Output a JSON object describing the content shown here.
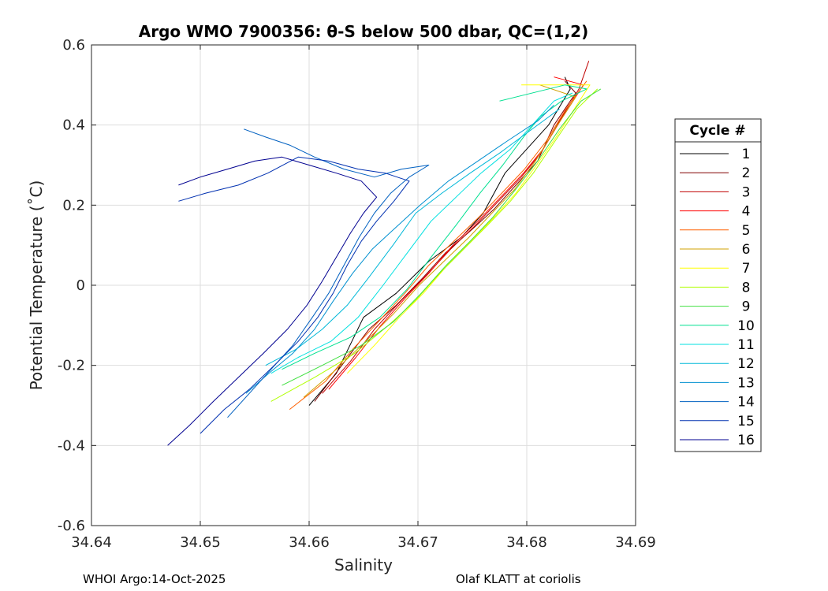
{
  "chart_data": {
    "type": "line",
    "title": "Argo WMO 7900356: θ-S below 500 dbar,  QC=(1,2)",
    "xlabel": "Salinity",
    "ylabel": "Potential Temperature (˚C)",
    "xlim": [
      34.64,
      34.69
    ],
    "ylim": [
      -0.6,
      0.6
    ],
    "x_ticks": [
      "34.64",
      "34.65",
      "34.66",
      "34.67",
      "34.68",
      "34.69"
    ],
    "y_ticks": [
      "0.6",
      "0.4",
      "0.2",
      "0",
      "-0.2",
      "-0.4",
      "-0.6"
    ],
    "grid": true,
    "legend": {
      "title": "Cycle #",
      "placement": "right"
    },
    "series": [
      {
        "name": "1",
        "color": "#000000",
        "points": [
          [
            34.66,
            -0.3
          ],
          [
            34.6625,
            -0.22
          ],
          [
            34.665,
            -0.08
          ],
          [
            34.668,
            -0.02
          ],
          [
            34.671,
            0.06
          ],
          [
            34.674,
            0.12
          ],
          [
            34.676,
            0.18
          ],
          [
            34.678,
            0.28
          ],
          [
            34.68,
            0.34
          ],
          [
            34.682,
            0.4
          ],
          [
            34.684,
            0.49
          ],
          [
            34.6835,
            0.52
          ]
        ]
      },
      {
        "name": "2",
        "color": "#800000",
        "points": [
          [
            34.6605,
            -0.29
          ],
          [
            34.663,
            -0.2
          ],
          [
            34.6655,
            -0.11
          ],
          [
            34.668,
            -0.05
          ],
          [
            34.6705,
            0.02
          ],
          [
            34.6725,
            0.08
          ],
          [
            34.675,
            0.14
          ],
          [
            34.677,
            0.19
          ],
          [
            34.679,
            0.25
          ],
          [
            34.681,
            0.31
          ],
          [
            34.6825,
            0.4
          ],
          [
            34.6845,
            0.48
          ],
          [
            34.6835,
            0.51
          ]
        ]
      },
      {
        "name": "3",
        "color": "#c00000",
        "points": [
          [
            34.6612,
            -0.27
          ],
          [
            34.6638,
            -0.19
          ],
          [
            34.666,
            -0.11
          ],
          [
            34.6684,
            -0.04
          ],
          [
            34.6706,
            0.02
          ],
          [
            34.673,
            0.09
          ],
          [
            34.6753,
            0.15
          ],
          [
            34.6774,
            0.21
          ],
          [
            34.6795,
            0.27
          ],
          [
            34.6813,
            0.33
          ],
          [
            34.683,
            0.41
          ],
          [
            34.6848,
            0.49
          ],
          [
            34.6857,
            0.56
          ]
        ]
      },
      {
        "name": "4",
        "color": "#ff0000",
        "points": [
          [
            34.6618,
            -0.26
          ],
          [
            34.6643,
            -0.18
          ],
          [
            34.6666,
            -0.1
          ],
          [
            34.6689,
            -0.03
          ],
          [
            34.671,
            0.03
          ],
          [
            34.6732,
            0.1
          ],
          [
            34.6755,
            0.16
          ],
          [
            34.6776,
            0.22
          ],
          [
            34.6797,
            0.28
          ],
          [
            34.6815,
            0.34
          ],
          [
            34.6833,
            0.42
          ],
          [
            34.6852,
            0.5
          ],
          [
            34.6825,
            0.52
          ]
        ]
      },
      {
        "name": "5",
        "color": "#ff6000",
        "points": [
          [
            34.6582,
            -0.31
          ],
          [
            34.6615,
            -0.24
          ],
          [
            34.664,
            -0.16
          ],
          [
            34.6664,
            -0.09
          ],
          [
            34.6688,
            -0.02
          ],
          [
            34.671,
            0.05
          ],
          [
            34.6733,
            0.11
          ],
          [
            34.6756,
            0.17
          ],
          [
            34.6777,
            0.23
          ],
          [
            34.6798,
            0.29
          ],
          [
            34.6818,
            0.36
          ],
          [
            34.6836,
            0.44
          ],
          [
            34.6855,
            0.51
          ]
        ]
      },
      {
        "name": "6",
        "color": "#d0a000",
        "points": [
          [
            34.6595,
            -0.28
          ],
          [
            34.6625,
            -0.21
          ],
          [
            34.6652,
            -0.14
          ],
          [
            34.6678,
            -0.07
          ],
          [
            34.6701,
            0.0
          ],
          [
            34.6724,
            0.06
          ],
          [
            34.6747,
            0.12
          ],
          [
            34.6768,
            0.18
          ],
          [
            34.6789,
            0.24
          ],
          [
            34.6808,
            0.31
          ],
          [
            34.6826,
            0.39
          ],
          [
            34.6845,
            0.47
          ],
          [
            34.6812,
            0.5
          ]
        ]
      },
      {
        "name": "7",
        "color": "#ffff00",
        "points": [
          [
            34.6635,
            -0.22
          ],
          [
            34.666,
            -0.15
          ],
          [
            34.6683,
            -0.08
          ],
          [
            34.6705,
            -0.02
          ],
          [
            34.6727,
            0.05
          ],
          [
            34.6749,
            0.11
          ],
          [
            34.677,
            0.17
          ],
          [
            34.679,
            0.23
          ],
          [
            34.6809,
            0.3
          ],
          [
            34.6827,
            0.37
          ],
          [
            34.6846,
            0.45
          ],
          [
            34.6858,
            0.5
          ],
          [
            34.6795,
            0.5
          ]
        ]
      },
      {
        "name": "8",
        "color": "#b0ff00",
        "points": [
          [
            34.6565,
            -0.29
          ],
          [
            34.6605,
            -0.23
          ],
          [
            34.6642,
            -0.17
          ],
          [
            34.6673,
            -0.1
          ],
          [
            34.6697,
            -0.04
          ],
          [
            34.672,
            0.03
          ],
          [
            34.6742,
            0.09
          ],
          [
            34.6764,
            0.15
          ],
          [
            34.6785,
            0.21
          ],
          [
            34.6806,
            0.28
          ],
          [
            34.6826,
            0.36
          ],
          [
            34.6846,
            0.44
          ],
          [
            34.6865,
            0.49
          ]
        ]
      },
      {
        "name": "9",
        "color": "#40e040",
        "points": [
          [
            34.6575,
            -0.25
          ],
          [
            34.6612,
            -0.2
          ],
          [
            34.6648,
            -0.15
          ],
          [
            34.6678,
            -0.09
          ],
          [
            34.6703,
            -0.02
          ],
          [
            34.6726,
            0.05
          ],
          [
            34.6748,
            0.11
          ],
          [
            34.6769,
            0.17
          ],
          [
            34.679,
            0.24
          ],
          [
            34.681,
            0.31
          ],
          [
            34.683,
            0.39
          ],
          [
            34.685,
            0.46
          ],
          [
            34.6868,
            0.49
          ]
        ]
      },
      {
        "name": "10",
        "color": "#00e090",
        "points": [
          [
            34.6575,
            -0.21
          ],
          [
            34.6605,
            -0.17
          ],
          [
            34.6638,
            -0.13
          ],
          [
            34.6665,
            -0.08
          ],
          [
            34.669,
            -0.01
          ],
          [
            34.6712,
            0.07
          ],
          [
            34.6735,
            0.15
          ],
          [
            34.6757,
            0.23
          ],
          [
            34.6778,
            0.3
          ],
          [
            34.6797,
            0.37
          ],
          [
            34.6812,
            0.42
          ],
          [
            34.6832,
            0.46
          ],
          [
            34.6855,
            0.49
          ],
          [
            34.6835,
            0.5
          ],
          [
            34.6775,
            0.46
          ]
        ]
      },
      {
        "name": "11",
        "color": "#00e0e0",
        "points": [
          [
            34.6565,
            -0.22
          ],
          [
            34.659,
            -0.18
          ],
          [
            34.662,
            -0.14
          ],
          [
            34.6645,
            -0.08
          ],
          [
            34.6668,
            0.0
          ],
          [
            34.669,
            0.08
          ],
          [
            34.6712,
            0.16
          ],
          [
            34.6735,
            0.22
          ],
          [
            34.6758,
            0.28
          ],
          [
            34.6785,
            0.34
          ],
          [
            34.6805,
            0.4
          ],
          [
            34.6825,
            0.46
          ],
          [
            34.6842,
            0.48
          ]
        ]
      },
      {
        "name": "12",
        "color": "#00b8d8",
        "points": [
          [
            34.656,
            -0.2
          ],
          [
            34.6588,
            -0.16
          ],
          [
            34.6612,
            -0.11
          ],
          [
            34.6635,
            -0.05
          ],
          [
            34.6655,
            0.02
          ],
          [
            34.6677,
            0.1
          ],
          [
            34.6698,
            0.18
          ],
          [
            34.6722,
            0.23
          ],
          [
            34.6748,
            0.28
          ],
          [
            34.6775,
            0.33
          ],
          [
            34.6795,
            0.37
          ],
          [
            34.6815,
            0.41
          ],
          [
            34.683,
            0.44
          ]
        ]
      },
      {
        "name": "13",
        "color": "#0090d0",
        "points": [
          [
            34.6542,
            -0.27
          ],
          [
            34.6563,
            -0.22
          ],
          [
            34.6585,
            -0.17
          ],
          [
            34.6605,
            -0.11
          ],
          [
            34.6622,
            -0.04
          ],
          [
            34.664,
            0.03
          ],
          [
            34.6658,
            0.09
          ],
          [
            34.6678,
            0.14
          ],
          [
            34.6702,
            0.2
          ],
          [
            34.6728,
            0.26
          ],
          [
            34.6755,
            0.31
          ],
          [
            34.6782,
            0.36
          ],
          [
            34.681,
            0.41
          ],
          [
            34.6825,
            0.45
          ]
        ]
      },
      {
        "name": "14",
        "color": "#0060c0",
        "points": [
          [
            34.6525,
            -0.33
          ],
          [
            34.6545,
            -0.27
          ],
          [
            34.6565,
            -0.21
          ],
          [
            34.6585,
            -0.15
          ],
          [
            34.6603,
            -0.08
          ],
          [
            34.6618,
            -0.02
          ],
          [
            34.6632,
            0.05
          ],
          [
            34.6646,
            0.12
          ],
          [
            34.666,
            0.18
          ],
          [
            34.6675,
            0.23
          ],
          [
            34.6692,
            0.27
          ],
          [
            34.671,
            0.3
          ],
          [
            34.6685,
            0.29
          ],
          [
            34.666,
            0.27
          ],
          [
            34.6632,
            0.29
          ],
          [
            34.6605,
            0.32
          ],
          [
            34.6582,
            0.35
          ],
          [
            34.656,
            0.37
          ],
          [
            34.654,
            0.39
          ]
        ]
      },
      {
        "name": "15",
        "color": "#0030b0",
        "points": [
          [
            34.65,
            -0.37
          ],
          [
            34.6522,
            -0.31
          ],
          [
            34.6545,
            -0.26
          ],
          [
            34.6568,
            -0.2
          ],
          [
            34.659,
            -0.14
          ],
          [
            34.6608,
            -0.08
          ],
          [
            34.6622,
            -0.02
          ],
          [
            34.6635,
            0.05
          ],
          [
            34.6648,
            0.11
          ],
          [
            34.6662,
            0.16
          ],
          [
            34.6678,
            0.21
          ],
          [
            34.6692,
            0.26
          ],
          [
            34.667,
            0.28
          ],
          [
            34.6645,
            0.29
          ],
          [
            34.6618,
            0.31
          ],
          [
            34.659,
            0.32
          ],
          [
            34.6562,
            0.28
          ],
          [
            34.6535,
            0.25
          ],
          [
            34.6505,
            0.23
          ],
          [
            34.648,
            0.21
          ]
        ]
      },
      {
        "name": "16",
        "color": "#000090",
        "points": [
          [
            34.647,
            -0.4
          ],
          [
            34.649,
            -0.35
          ],
          [
            34.6512,
            -0.29
          ],
          [
            34.6535,
            -0.23
          ],
          [
            34.6558,
            -0.17
          ],
          [
            34.658,
            -0.11
          ],
          [
            34.6598,
            -0.05
          ],
          [
            34.6612,
            0.01
          ],
          [
            34.6625,
            0.07
          ],
          [
            34.6638,
            0.13
          ],
          [
            34.665,
            0.18
          ],
          [
            34.6662,
            0.22
          ],
          [
            34.6648,
            0.26
          ],
          [
            34.6625,
            0.28
          ],
          [
            34.66,
            0.3
          ],
          [
            34.6575,
            0.32
          ],
          [
            34.655,
            0.31
          ],
          [
            34.6525,
            0.29
          ],
          [
            34.65,
            0.27
          ],
          [
            34.648,
            0.25
          ]
        ]
      }
    ]
  },
  "footer": {
    "left": "WHOI Argo:14-Oct-2025",
    "right": "Olaf KLATT at coriolis"
  }
}
